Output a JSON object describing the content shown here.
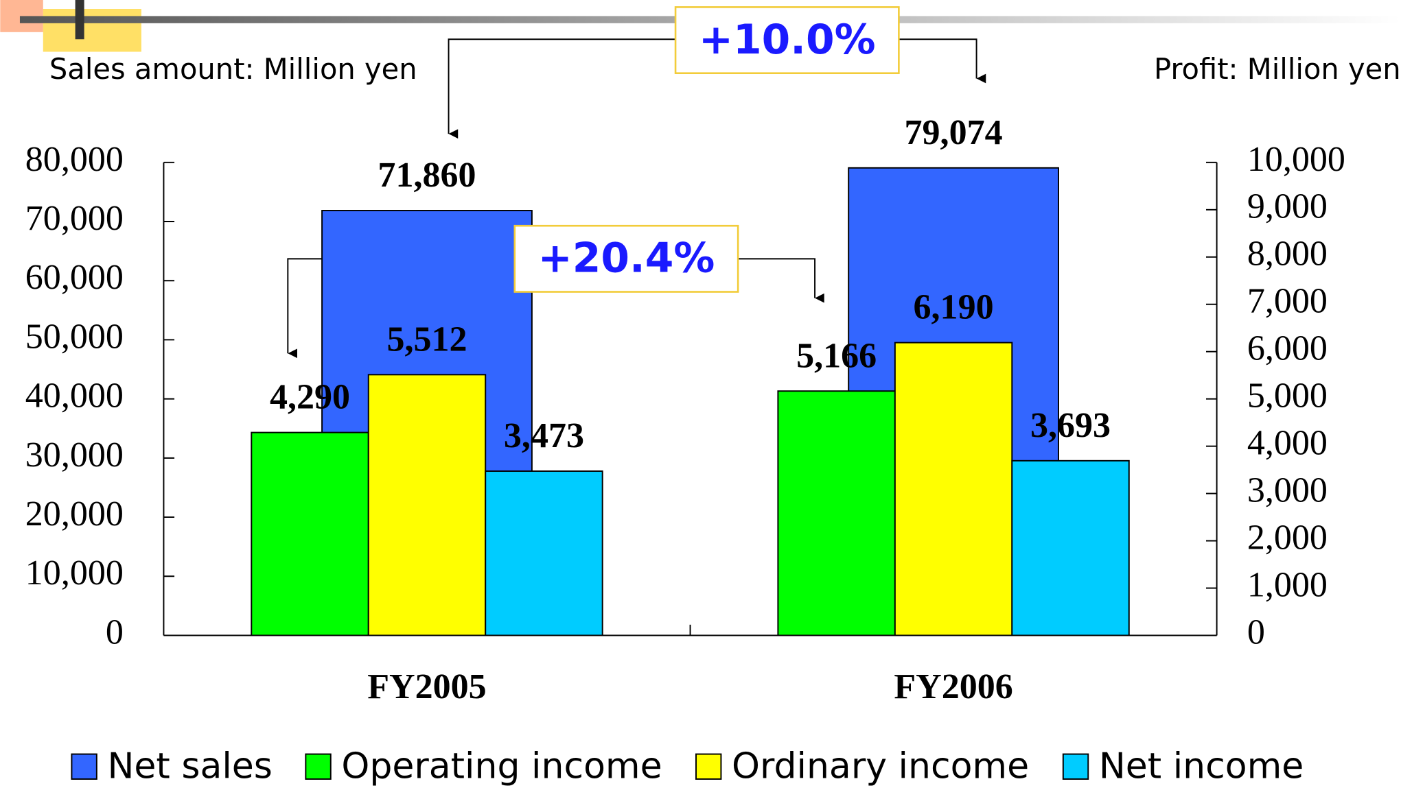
{
  "chart_data": {
    "type": "bar",
    "y_label": "Sales amount: Million yen",
    "y2_label": "Profit: Million yen",
    "annotations": [
      "+10.0%",
      "+20.4%"
    ],
    "categories": [
      "FY2005",
      "FY2006"
    ],
    "series": [
      {
        "name": "Net sales",
        "color": "#3366ff",
        "values": [
          71860,
          79074
        ],
        "value_labels": [
          "71,860",
          "79,074"
        ]
      },
      {
        "name": "Operating income",
        "color": "#00ff00",
        "axis": "y2",
        "values": [
          4290,
          5166
        ],
        "value_labels": [
          "4,290",
          "5,166"
        ]
      },
      {
        "name": "Ordinary income",
        "color": "#ffff00",
        "axis": "y2",
        "values": [
          5512,
          6190
        ],
        "value_labels": [
          "5,512",
          "6,190"
        ]
      },
      {
        "name": "Net income",
        "color": "#00ccff",
        "axis": "y2",
        "values": [
          3473,
          3693
        ],
        "value_labels": [
          "3,473",
          "3,693"
        ]
      }
    ],
    "ylim": [
      0,
      80000
    ],
    "yticks": [
      0,
      {
        "value": 10000,
        "label": "10,000"
      },
      {
        "value": 20000,
        "label": "20,000"
      },
      {
        "value": 30000,
        "label": "30,000"
      },
      {
        "value": 40000,
        "label": "40,000"
      },
      {
        "value": 50000,
        "label": "50,000"
      },
      {
        "value": 60000,
        "label": "60,000"
      },
      {
        "value": 70000,
        "label": "70,000"
      },
      {
        "value": 80000,
        "label": "80,000"
      }
    ],
    "y2lim": [
      0,
      10000
    ],
    "y2ticks": [
      0,
      {
        "value": 1000,
        "label": "1,000"
      },
      {
        "value": 2000,
        "label": "2,000"
      },
      {
        "value": 3000,
        "label": "3,000"
      },
      {
        "value": 4000,
        "label": "4,000"
      },
      {
        "value": 5000,
        "label": "5,000"
      },
      {
        "value": 6000,
        "label": "6,000"
      },
      {
        "value": 7000,
        "label": "7,000"
      },
      {
        "value": 8000,
        "label": "8,000"
      },
      {
        "value": 9000,
        "label": "9,000"
      },
      {
        "value": 10000,
        "label": "10,000"
      }
    ],
    "legend": "bottom"
  }
}
